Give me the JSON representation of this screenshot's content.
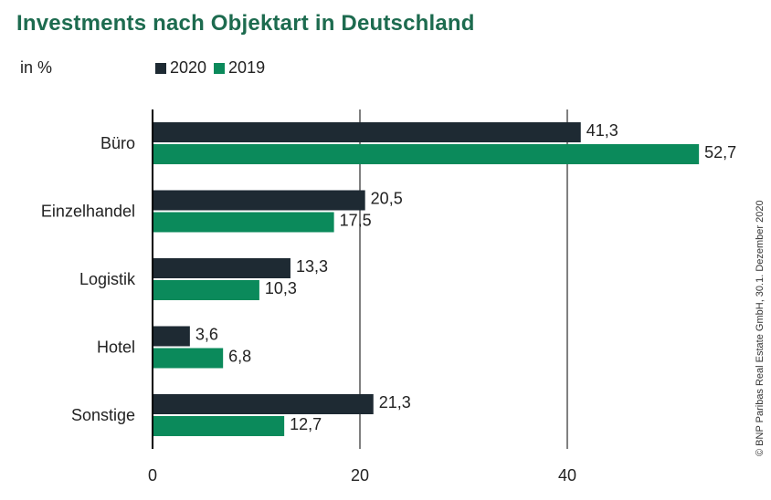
{
  "title": "Investments nach Objektart in Deutschland",
  "unit_label": "in %",
  "copyright": "© BNP Paribas Real Estate GmbH, 30.1. Dezember 2020",
  "colors": {
    "series_2020": "#1e2a33",
    "series_2019": "#0b8a5b",
    "title": "#1d6b4f",
    "grid": "#000000"
  },
  "chart_data": {
    "type": "bar",
    "orientation": "horizontal",
    "title": "Investments nach Objektart in Deutschland",
    "xlabel": "",
    "ylabel": "in %",
    "categories": [
      "Büro",
      "Einzelhandel",
      "Logistik",
      "Hotel",
      "Sonstige"
    ],
    "series": [
      {
        "name": "2020",
        "color": "#1e2a33",
        "values": [
          41.3,
          20.5,
          13.3,
          3.6,
          21.3
        ],
        "labels": [
          "41,3",
          "20,5",
          "13,3",
          "3,6",
          "21,3"
        ]
      },
      {
        "name": "2019",
        "color": "#0b8a5b",
        "values": [
          52.7,
          17.5,
          10.3,
          6.8,
          12.7
        ],
        "labels": [
          "52,7",
          "17,5",
          "10,3",
          "6,8",
          "12,7"
        ]
      }
    ],
    "xlim": [
      0,
      60
    ],
    "xticks": [
      0,
      20,
      40
    ],
    "xtick_labels": [
      "0",
      "20",
      "40"
    ],
    "grid": true,
    "legend": "top-left"
  }
}
